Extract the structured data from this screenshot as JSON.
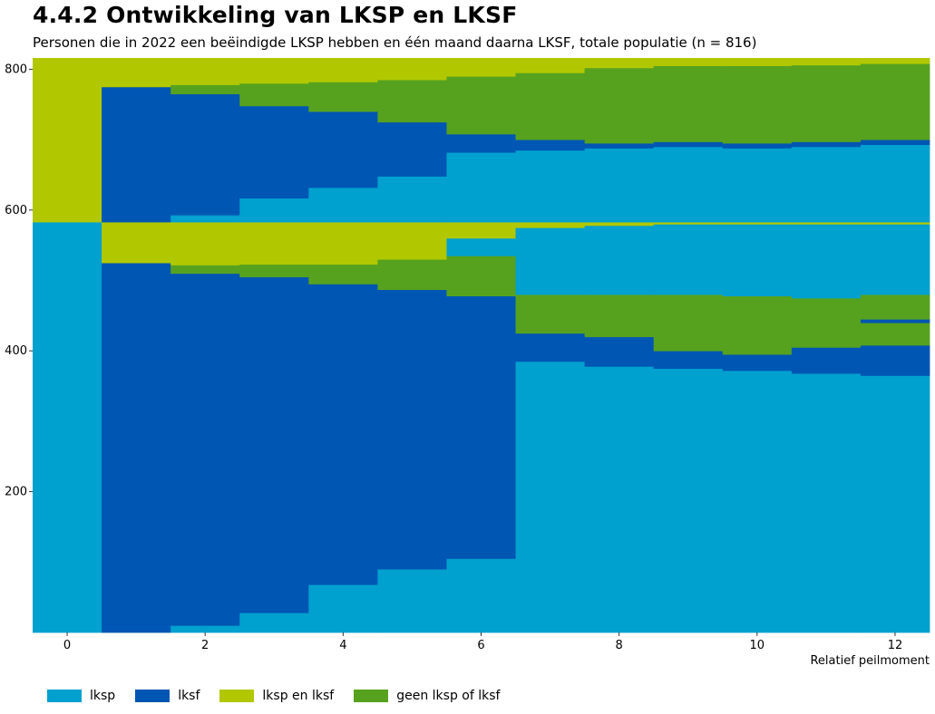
{
  "title": "4.4.2 Ontwikkeling van LKSP en LKSF",
  "subtitle": "Personen die in 2022 een beëindigde LKSP hebben en één maand daarna LKSF, totale populatie (n = 816)",
  "chart_data": {
    "type": "area",
    "description_x": "Relatief peilmoment",
    "xlabel": "Relatief peilmoment",
    "ylabel": "",
    "x_ticks": [
      0,
      2,
      4,
      6,
      8,
      10,
      12
    ],
    "y_ticks": [
      200,
      400,
      600,
      800
    ],
    "xlim": [
      -0.5,
      12.5
    ],
    "ylim": [
      0,
      816
    ],
    "grid": false,
    "legend_position": "bottom",
    "categories": [
      "lksp",
      "lksf",
      "lksp en lksf",
      "geen lksp of lksf"
    ],
    "colors": {
      "lksp": "#00a0cf",
      "lksf": "#0056b3",
      "lksp en lksf": "#b1c800",
      "geen lksp of lksf": "#56a21f"
    },
    "periods": [
      {
        "x": 0,
        "segments": [
          [
            "lksp",
            0,
            583
          ],
          [
            "lksp en lksf",
            583,
            816
          ]
        ]
      },
      {
        "x": 1,
        "segments": [
          [
            "lksf",
            0,
            525
          ],
          [
            "lksp en lksf",
            525,
            583
          ],
          [
            "lksf",
            583,
            775
          ],
          [
            "lksp en lksf",
            775,
            816
          ]
        ]
      },
      {
        "x": 2,
        "segments": [
          [
            "lksp",
            0,
            10
          ],
          [
            "lksf",
            10,
            510
          ],
          [
            "geen lksp of lksf",
            510,
            522
          ],
          [
            "lksp en lksf",
            522,
            583
          ],
          [
            "lksp",
            583,
            593
          ],
          [
            "lksf",
            593,
            765
          ],
          [
            "geen lksp of lksf",
            765,
            778
          ],
          [
            "lksp en lksf",
            778,
            816
          ]
        ]
      },
      {
        "x": 3,
        "segments": [
          [
            "lksp",
            0,
            28
          ],
          [
            "lksf",
            28,
            505
          ],
          [
            "geen lksp of lksf",
            505,
            523
          ],
          [
            "lksp en lksf",
            523,
            583
          ],
          [
            "lksp",
            583,
            617
          ],
          [
            "lksf",
            617,
            748
          ],
          [
            "geen lksp of lksf",
            748,
            780
          ],
          [
            "lksp en lksf",
            780,
            816
          ]
        ]
      },
      {
        "x": 4,
        "segments": [
          [
            "lksp",
            0,
            68
          ],
          [
            "lksf",
            68,
            495
          ],
          [
            "geen lksp of lksf",
            495,
            523
          ],
          [
            "lksp en lksf",
            523,
            583
          ],
          [
            "lksp",
            583,
            632
          ],
          [
            "lksf",
            632,
            740
          ],
          [
            "geen lksp of lksf",
            740,
            782
          ],
          [
            "lksp en lksf",
            782,
            816
          ]
        ]
      },
      {
        "x": 5,
        "segments": [
          [
            "lksp",
            0,
            90
          ],
          [
            "lksf",
            90,
            487
          ],
          [
            "geen lksp of lksf",
            487,
            530
          ],
          [
            "lksp en lksf",
            530,
            583
          ],
          [
            "lksp",
            583,
            648
          ],
          [
            "lksf",
            648,
            725
          ],
          [
            "geen lksp of lksf",
            725,
            785
          ],
          [
            "lksp en lksf",
            785,
            816
          ]
        ]
      },
      {
        "x": 6,
        "segments": [
          [
            "lksp",
            0,
            105
          ],
          [
            "lksf",
            105,
            478
          ],
          [
            "geen lksp of lksf",
            478,
            535
          ],
          [
            "lksp",
            535,
            560
          ],
          [
            "lksp en lksf",
            560,
            583
          ],
          [
            "lksp",
            583,
            682
          ],
          [
            "lksf",
            682,
            708
          ],
          [
            "geen lksp of lksf",
            708,
            790
          ],
          [
            "lksp en lksf",
            790,
            816
          ]
        ]
      },
      {
        "x": 7,
        "segments": [
          [
            "lksp",
            0,
            385
          ],
          [
            "lksf",
            385,
            425
          ],
          [
            "geen lksp of lksf",
            425,
            480
          ],
          [
            "lksp",
            480,
            575
          ],
          [
            "lksp en lksf",
            575,
            583
          ],
          [
            "lksp",
            583,
            685
          ],
          [
            "lksf",
            685,
            700
          ],
          [
            "geen lksp of lksf",
            700,
            795
          ],
          [
            "lksp en lksf",
            795,
            816
          ]
        ]
      },
      {
        "x": 8,
        "segments": [
          [
            "lksp",
            0,
            378
          ],
          [
            "lksf",
            378,
            420
          ],
          [
            "geen lksp of lksf",
            420,
            480
          ],
          [
            "lksp",
            480,
            578
          ],
          [
            "lksp en lksf",
            578,
            583
          ],
          [
            "lksp",
            583,
            688
          ],
          [
            "lksf",
            688,
            695
          ],
          [
            "geen lksp of lksf",
            695,
            802
          ],
          [
            "lksp en lksf",
            802,
            816
          ]
        ]
      },
      {
        "x": 9,
        "segments": [
          [
            "lksp",
            0,
            375
          ],
          [
            "lksf",
            375,
            400
          ],
          [
            "geen lksp of lksf",
            400,
            480
          ],
          [
            "lksp",
            480,
            580
          ],
          [
            "lksp en lksf",
            580,
            583
          ],
          [
            "lksp",
            583,
            690
          ],
          [
            "lksf",
            690,
            697
          ],
          [
            "geen lksp of lksf",
            697,
            805
          ],
          [
            "lksp en lksf",
            805,
            816
          ]
        ]
      },
      {
        "x": 10,
        "segments": [
          [
            "lksp",
            0,
            372
          ],
          [
            "lksf",
            372,
            395
          ],
          [
            "geen lksp of lksf",
            395,
            478
          ],
          [
            "lksp",
            478,
            580
          ],
          [
            "lksp en lksf",
            580,
            583
          ],
          [
            "lksp",
            583,
            688
          ],
          [
            "lksf",
            688,
            695
          ],
          [
            "geen lksp of lksf",
            695,
            805
          ],
          [
            "lksp en lksf",
            805,
            816
          ]
        ]
      },
      {
        "x": 11,
        "segments": [
          [
            "lksp",
            0,
            368
          ],
          [
            "lksf",
            368,
            405
          ],
          [
            "geen lksp of lksf",
            405,
            475
          ],
          [
            "lksp",
            475,
            580
          ],
          [
            "lksp en lksf",
            580,
            583
          ],
          [
            "lksp",
            583,
            690
          ],
          [
            "lksf",
            690,
            697
          ],
          [
            "geen lksp of lksf",
            697,
            806
          ],
          [
            "lksp en lksf",
            806,
            816
          ]
        ]
      },
      {
        "x": 12,
        "segments": [
          [
            "lksp",
            0,
            365
          ],
          [
            "lksf",
            365,
            408
          ],
          [
            "geen lksp of lksf",
            408,
            440
          ],
          [
            "lksf",
            440,
            445
          ],
          [
            "geen lksp of lksf",
            445,
            480
          ],
          [
            "lksp",
            480,
            580
          ],
          [
            "lksp en lksf",
            580,
            583
          ],
          [
            "lksp",
            583,
            693
          ],
          [
            "lksf",
            693,
            700
          ],
          [
            "geen lksp of lksf",
            700,
            808
          ],
          [
            "lksp en lksf",
            808,
            816
          ]
        ]
      }
    ]
  }
}
